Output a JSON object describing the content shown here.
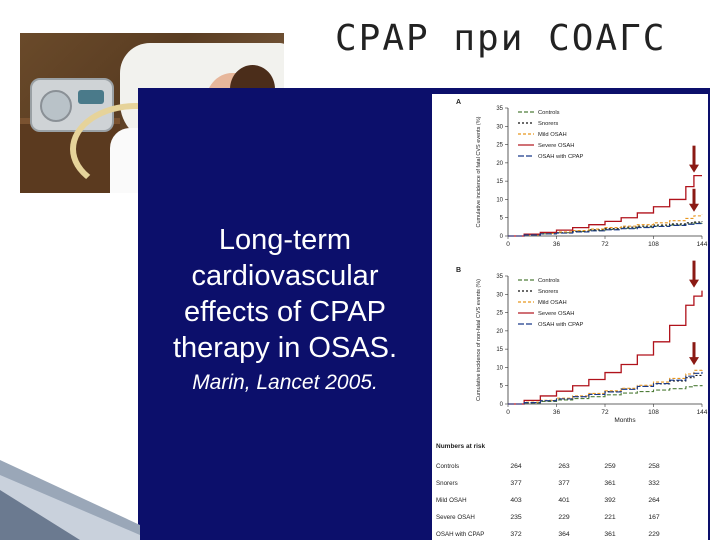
{
  "slide": {
    "title": "CPAP при СОАГС",
    "headline_lines": [
      "Long-term",
      "cardiovascular",
      "effects of CPAP",
      "therapy in OSAS."
    ],
    "citation": "Marin, Lancet 2005."
  },
  "photo": {
    "description_icon": "patient-with-cpap-mask-photo"
  },
  "figure": {
    "panelA": {
      "label": "A",
      "ylabel": "Cumulative incidence of fatal CVS events (%)",
      "yticks": [
        "0",
        "5",
        "10",
        "15",
        "20",
        "25",
        "30",
        "35"
      ],
      "xticks": [
        "0",
        "36",
        "72",
        "108",
        "144"
      ],
      "legend": [
        "Controls",
        "Snorers",
        "Mild OSAH",
        "Severe OSAH",
        "OSAH with CPAP"
      ]
    },
    "panelB": {
      "label": "B",
      "ylabel": "Cumulative incidence of non-fatal CVS events (%)",
      "yticks": [
        "0",
        "5",
        "10",
        "15",
        "20",
        "25",
        "30",
        "35"
      ],
      "xticks": [
        "0",
        "36",
        "72",
        "108",
        "144"
      ],
      "xlabel": "Months",
      "legend": [
        "Controls",
        "Snorers",
        "Mild OSAH",
        "Severe OSAH",
        "OSAH with CPAP"
      ]
    },
    "risk_table": {
      "heading": "Numbers at risk",
      "rows": [
        {
          "label": "Controls",
          "values": [
            "264",
            "263",
            "259",
            "258"
          ]
        },
        {
          "label": "Snorers",
          "values": [
            "377",
            "377",
            "361",
            "332"
          ]
        },
        {
          "label": "Mild OSAH",
          "values": [
            "403",
            "401",
            "392",
            "264"
          ]
        },
        {
          "label": "Severe OSAH",
          "values": [
            "235",
            "229",
            "221",
            "167"
          ]
        },
        {
          "label": "OSAH with CPAP",
          "values": [
            "372",
            "364",
            "361",
            "229"
          ]
        }
      ]
    },
    "colors": {
      "controls": "#4f7d3a",
      "snorers": "#111111",
      "mild": "#e8961e",
      "severe": "#b0121b",
      "cpap": "#1a3a8a",
      "arrow": "#8b1a14"
    }
  },
  "chart_data": [
    {
      "type": "line",
      "title": "A",
      "ylabel": "Cumulative incidence of fatal CVS events (%)",
      "xlabel": "",
      "ylim": [
        0,
        35
      ],
      "x": [
        0,
        12,
        24,
        36,
        48,
        60,
        72,
        84,
        96,
        108,
        120,
        132,
        138,
        144
      ],
      "series": [
        {
          "name": "Controls",
          "values": [
            0,
            0.3,
            0.6,
            0.9,
            1.2,
            1.5,
            1.8,
            2.1,
            2.4,
            2.7,
            3.0,
            3.3,
            3.5,
            3.6
          ]
        },
        {
          "name": "Snorers",
          "values": [
            0,
            0.3,
            0.6,
            0.9,
            1.3,
            1.7,
            2.0,
            2.4,
            2.7,
            3.0,
            3.3,
            3.6,
            3.8,
            4.0
          ]
        },
        {
          "name": "Mild OSAH",
          "values": [
            0,
            0.3,
            0.7,
            1.1,
            1.5,
            1.9,
            2.3,
            2.7,
            3.1,
            3.6,
            4.2,
            4.8,
            5.5,
            5.8
          ]
        },
        {
          "name": "Severe OSAH",
          "values": [
            0,
            0.5,
            1.0,
            1.6,
            2.3,
            3.1,
            4.0,
            5.0,
            6.3,
            8.0,
            10.0,
            13.5,
            16.5,
            16.5
          ]
        },
        {
          "name": "OSAH with CPAP",
          "values": [
            0,
            0.3,
            0.6,
            0.8,
            1.1,
            1.4,
            1.7,
            2.0,
            2.3,
            2.6,
            2.9,
            3.2,
            3.4,
            3.5
          ]
        }
      ]
    },
    {
      "type": "line",
      "title": "B",
      "ylabel": "Cumulative incidence of non-fatal CVS events (%)",
      "xlabel": "Months",
      "ylim": [
        0,
        35
      ],
      "x": [
        0,
        12,
        24,
        36,
        48,
        60,
        72,
        84,
        96,
        108,
        120,
        132,
        138,
        144
      ],
      "series": [
        {
          "name": "Controls",
          "values": [
            0,
            0.3,
            0.7,
            1.1,
            1.5,
            2.0,
            2.5,
            3.0,
            3.4,
            3.8,
            4.2,
            4.7,
            5.0,
            5.2
          ]
        },
        {
          "name": "Snorers",
          "values": [
            0,
            0.4,
            0.9,
            1.4,
            2.0,
            2.7,
            3.4,
            4.1,
            4.8,
            5.5,
            6.3,
            7.2,
            7.8,
            8.2
          ]
        },
        {
          "name": "Mild OSAH",
          "values": [
            0,
            0.5,
            1.0,
            1.6,
            2.2,
            2.9,
            3.6,
            4.3,
            5.1,
            6.0,
            7.0,
            8.2,
            9.2,
            9.8
          ]
        },
        {
          "name": "Severe OSAH",
          "values": [
            0,
            1.0,
            2.2,
            3.5,
            5.0,
            6.7,
            8.6,
            10.8,
            13.4,
            17.0,
            21.5,
            27.0,
            29.5,
            31.0
          ]
        },
        {
          "name": "OSAH with CPAP",
          "values": [
            0,
            0.4,
            0.9,
            1.4,
            2.0,
            2.6,
            3.3,
            4.0,
            4.8,
            5.6,
            6.5,
            7.6,
            8.4,
            8.8
          ]
        }
      ]
    }
  ]
}
